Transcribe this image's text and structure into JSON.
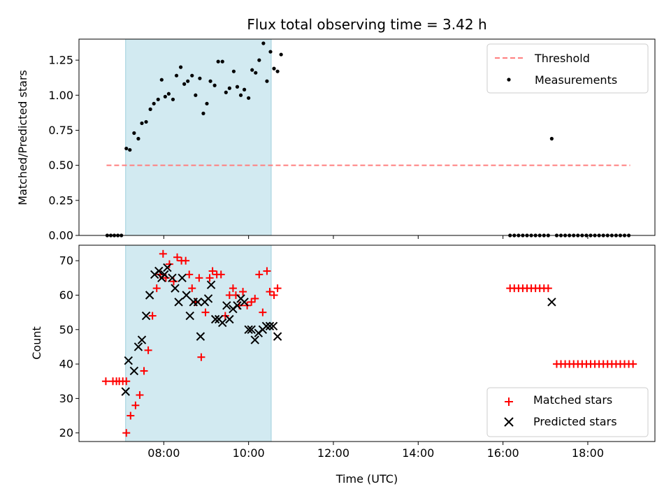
{
  "chart_data": [
    {
      "type": "scatter",
      "title": "Flux total observing time = 3.42 h",
      "xlabel": "",
      "ylabel": "Matched/Predicted stars",
      "ylim": [
        0,
        1.4
      ],
      "xlim": [
        "06:00",
        "19:35"
      ],
      "yticks": [
        0.0,
        0.25,
        0.5,
        0.75,
        1.0,
        1.25
      ],
      "ytick_labels": [
        "0.00",
        "0.25",
        "0.50",
        "0.75",
        "1.00",
        "1.25"
      ],
      "shaded_span": {
        "from": "07:06",
        "to": "10:32",
        "color": "#add8e6"
      },
      "legend_position": "top-right",
      "threshold": {
        "name": "Threshold",
        "value": 0.5,
        "x_from": "06:39",
        "x_to": "19:00",
        "color": "#ff7f7f",
        "style": "dashed"
      },
      "series": [
        {
          "name": "Measurements",
          "marker": "dot",
          "color": "#000000",
          "points": [
            [
              "06:40",
              0
            ],
            [
              "06:45",
              0
            ],
            [
              "06:50",
              0
            ],
            [
              "06:55",
              0
            ],
            [
              "07:00",
              0
            ],
            [
              "07:07",
              0.62
            ],
            [
              "07:12",
              0.61
            ],
            [
              "07:18",
              0.73
            ],
            [
              "07:24",
              0.69
            ],
            [
              "07:29",
              0.8
            ],
            [
              "07:35",
              0.81
            ],
            [
              "07:41",
              0.9
            ],
            [
              "07:46",
              0.94
            ],
            [
              "07:52",
              0.97
            ],
            [
              "07:57",
              1.11
            ],
            [
              "08:02",
              0.99
            ],
            [
              "08:07",
              1.01
            ],
            [
              "08:13",
              0.97
            ],
            [
              "08:18",
              1.14
            ],
            [
              "08:24",
              1.2
            ],
            [
              "08:29",
              1.08
            ],
            [
              "08:34",
              1.1
            ],
            [
              "08:40",
              1.14
            ],
            [
              "08:45",
              1.0
            ],
            [
              "08:51",
              1.12
            ],
            [
              "08:56",
              0.87
            ],
            [
              "09:01",
              0.94
            ],
            [
              "09:06",
              1.1
            ],
            [
              "09:12",
              1.07
            ],
            [
              "09:17",
              1.24
            ],
            [
              "09:23",
              1.24
            ],
            [
              "09:28",
              1.02
            ],
            [
              "09:33",
              1.05
            ],
            [
              "09:39",
              1.17
            ],
            [
              "09:44",
              1.06
            ],
            [
              "09:49",
              1.0
            ],
            [
              "09:54",
              1.04
            ],
            [
              "10:00",
              0.98
            ],
            [
              "10:05",
              1.18
            ],
            [
              "10:10",
              1.16
            ],
            [
              "10:15",
              1.25
            ],
            [
              "10:21",
              1.37
            ],
            [
              "10:26",
              1.1
            ],
            [
              "10:31",
              1.31
            ],
            [
              "10:36",
              1.19
            ],
            [
              "10:41",
              1.17
            ],
            [
              "10:46",
              1.29
            ],
            [
              "16:10",
              0
            ],
            [
              "16:16",
              0
            ],
            [
              "16:22",
              0
            ],
            [
              "16:28",
              0
            ],
            [
              "16:34",
              0
            ],
            [
              "16:40",
              0
            ],
            [
              "16:46",
              0
            ],
            [
              "16:52",
              0
            ],
            [
              "16:58",
              0
            ],
            [
              "17:04",
              0
            ],
            [
              "17:09",
              0.69
            ],
            [
              "17:16",
              0
            ],
            [
              "17:22",
              0
            ],
            [
              "17:28",
              0
            ],
            [
              "17:34",
              0
            ],
            [
              "17:40",
              0
            ],
            [
              "17:46",
              0
            ],
            [
              "17:52",
              0
            ],
            [
              "17:58",
              0
            ],
            [
              "18:04",
              0
            ],
            [
              "18:10",
              0
            ],
            [
              "18:16",
              0
            ],
            [
              "18:22",
              0
            ],
            [
              "18:28",
              0
            ],
            [
              "18:34",
              0
            ],
            [
              "18:40",
              0
            ],
            [
              "18:46",
              0
            ],
            [
              "18:52",
              0
            ],
            [
              "18:58",
              0
            ]
          ]
        }
      ]
    },
    {
      "type": "scatter",
      "title": "",
      "xlabel": "Time (UTC)",
      "ylabel": "Count",
      "ylim": [
        17.5,
        74.5
      ],
      "xlim": [
        "06:00",
        "19:35"
      ],
      "yticks": [
        20,
        30,
        40,
        50,
        60,
        70
      ],
      "ytick_labels": [
        "20",
        "30",
        "40",
        "50",
        "60",
        "70"
      ],
      "xticks": [
        "08:00",
        "10:00",
        "12:00",
        "14:00",
        "16:00",
        "18:00"
      ],
      "xtick_labels": [
        "08:00",
        "10:00",
        "12:00",
        "14:00",
        "16:00",
        "18:00"
      ],
      "shaded_span": {
        "from": "07:06",
        "to": "10:32",
        "color": "#add8e6"
      },
      "legend_position": "bottom-right",
      "series": [
        {
          "name": "Matched stars",
          "marker": "plus",
          "color": "#ff0000",
          "points": [
            [
              "06:38",
              35
            ],
            [
              "06:48",
              35
            ],
            [
              "06:53",
              35
            ],
            [
              "06:57",
              35
            ],
            [
              "07:02",
              35
            ],
            [
              "07:07",
              35
            ],
            [
              "07:07",
              20
            ],
            [
              "07:13",
              25
            ],
            [
              "07:20",
              28
            ],
            [
              "07:26",
              31
            ],
            [
              "07:32",
              38
            ],
            [
              "07:38",
              44
            ],
            [
              "07:44",
              54
            ],
            [
              "07:50",
              62
            ],
            [
              "07:55",
              66
            ],
            [
              "07:59",
              72
            ],
            [
              "08:03",
              65
            ],
            [
              "08:08",
              69
            ],
            [
              "08:14",
              64
            ],
            [
              "08:19",
              71
            ],
            [
              "08:25",
              70
            ],
            [
              "08:31",
              70
            ],
            [
              "08:36",
              66
            ],
            [
              "08:40",
              62
            ],
            [
              "08:45",
              58
            ],
            [
              "08:50",
              65
            ],
            [
              "08:53",
              42
            ],
            [
              "08:59",
              55
            ],
            [
              "09:05",
              65
            ],
            [
              "09:09",
              67
            ],
            [
              "09:15",
              66
            ],
            [
              "09:21",
              66
            ],
            [
              "09:27",
              54
            ],
            [
              "09:33",
              60
            ],
            [
              "09:38",
              62
            ],
            [
              "09:42",
              60
            ],
            [
              "09:47",
              57
            ],
            [
              "09:52",
              61
            ],
            [
              "09:58",
              57
            ],
            [
              "10:04",
              58
            ],
            [
              "10:09",
              59
            ],
            [
              "10:15",
              66
            ],
            [
              "10:20",
              55
            ],
            [
              "10:26",
              67
            ],
            [
              "10:30",
              61
            ],
            [
              "10:36",
              60
            ],
            [
              "10:41",
              62
            ],
            [
              "16:10",
              62
            ],
            [
              "16:16",
              62
            ],
            [
              "16:22",
              62
            ],
            [
              "16:28",
              62
            ],
            [
              "16:34",
              62
            ],
            [
              "16:40",
              62
            ],
            [
              "16:46",
              62
            ],
            [
              "16:52",
              62
            ],
            [
              "16:58",
              62
            ],
            [
              "17:04",
              62
            ],
            [
              "17:16",
              40
            ],
            [
              "17:22",
              40
            ],
            [
              "17:28",
              40
            ],
            [
              "17:34",
              40
            ],
            [
              "17:40",
              40
            ],
            [
              "17:46",
              40
            ],
            [
              "17:52",
              40
            ],
            [
              "17:58",
              40
            ],
            [
              "18:04",
              40
            ],
            [
              "18:10",
              40
            ],
            [
              "18:16",
              40
            ],
            [
              "18:22",
              40
            ],
            [
              "18:28",
              40
            ],
            [
              "18:34",
              40
            ],
            [
              "18:40",
              40
            ],
            [
              "18:46",
              40
            ],
            [
              "18:52",
              40
            ],
            [
              "18:58",
              40
            ],
            [
              "19:04",
              40
            ]
          ]
        },
        {
          "name": "Predicted stars",
          "marker": "x",
          "color": "#000000",
          "points": [
            [
              "07:06",
              32
            ],
            [
              "07:10",
              41
            ],
            [
              "07:18",
              38
            ],
            [
              "07:24",
              45
            ],
            [
              "07:29",
              47
            ],
            [
              "07:35",
              54
            ],
            [
              "07:40",
              60
            ],
            [
              "07:47",
              66
            ],
            [
              "07:53",
              67
            ],
            [
              "07:57",
              65
            ],
            [
              "08:01",
              66
            ],
            [
              "08:05",
              68
            ],
            [
              "08:12",
              65
            ],
            [
              "08:16",
              62
            ],
            [
              "08:21",
              58
            ],
            [
              "08:26",
              65
            ],
            [
              "08:32",
              60
            ],
            [
              "08:37",
              54
            ],
            [
              "08:42",
              58
            ],
            [
              "08:48",
              58
            ],
            [
              "08:52",
              48
            ],
            [
              "08:58",
              58
            ],
            [
              "09:03",
              59
            ],
            [
              "09:07",
              63
            ],
            [
              "09:13",
              53
            ],
            [
              "09:18",
              53
            ],
            [
              "09:23",
              52
            ],
            [
              "09:29",
              57
            ],
            [
              "09:33",
              53
            ],
            [
              "09:38",
              56
            ],
            [
              "09:44",
              57
            ],
            [
              "09:49",
              59
            ],
            [
              "09:54",
              58
            ],
            [
              "10:00",
              50
            ],
            [
              "10:04",
              50
            ],
            [
              "10:09",
              47
            ],
            [
              "10:14",
              49
            ],
            [
              "10:20",
              50
            ],
            [
              "10:25",
              51
            ],
            [
              "10:30",
              51
            ],
            [
              "10:35",
              51
            ],
            [
              "10:41",
              48
            ],
            [
              "17:09",
              58
            ]
          ]
        }
      ]
    }
  ]
}
